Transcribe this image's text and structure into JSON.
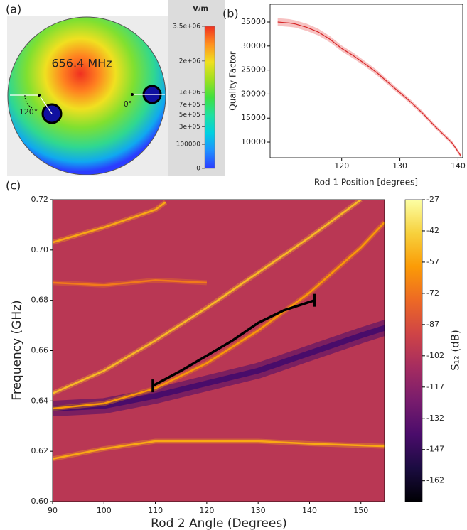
{
  "chart_data": [
    {
      "type": "field-map",
      "panel_label": "(a)",
      "annotation": "656.4 MHz",
      "angle_labels": [
        "120°",
        "0°"
      ],
      "colorbar": {
        "label": "V/m",
        "scale": "sqrt",
        "lim": [
          0,
          3500000
        ],
        "ticks": [
          {
            "value": 3500000,
            "label": "3.5e+06"
          },
          {
            "value": 2000000,
            "label": "2e+06"
          },
          {
            "value": 1000000,
            "label": "1e+06"
          },
          {
            "value": 700000,
            "label": "7e+05"
          },
          {
            "value": 500000,
            "label": "5e+05"
          },
          {
            "value": 300000,
            "label": "3e+05"
          },
          100000,
          0
        ],
        "colormap": [
          "#2b3cff",
          "#1e90ff",
          "#00d0e0",
          "#20e0a0",
          "#40e040",
          "#a0e020",
          "#f0e020",
          "#ff9020",
          "#f03020"
        ]
      }
    },
    {
      "type": "line",
      "panel_label": "(b)",
      "xlabel": "Rod 1 Position [degrees]",
      "ylabel": "Quality Factor",
      "xlim": [
        107.7,
        140.8
      ],
      "ylim": [
        6750,
        38700
      ],
      "xticks": [
        120,
        130,
        140
      ],
      "yticks": [
        10000,
        15000,
        20000,
        25000,
        30000,
        35000
      ],
      "series": [
        {
          "color": "#d62728",
          "band_color": "#f4a8a8",
          "x": [
            109,
            110,
            111,
            112,
            114,
            116,
            118,
            120,
            122,
            124,
            126,
            128,
            130,
            132,
            134,
            136,
            138,
            139,
            140,
            140.5
          ],
          "values": [
            35000,
            34900,
            34800,
            34600,
            33900,
            32900,
            31400,
            29500,
            28000,
            26300,
            24500,
            22400,
            20300,
            18200,
            15900,
            13300,
            11000,
            9800,
            8000,
            7100
          ],
          "errors": [
            800,
            800,
            800,
            750,
            750,
            700,
            650,
            600,
            600,
            550,
            550,
            500,
            500,
            450,
            450,
            400,
            400,
            400,
            400,
            400
          ]
        }
      ]
    },
    {
      "type": "heatmap",
      "panel_label": "(c)",
      "xlabel": "Rod 2 Angle (Degrees)",
      "ylabel": "Frequency (GHz)",
      "colorbar_label": "S₁₂ (dB)",
      "xlim": [
        90,
        154.6
      ],
      "ylim": [
        0.6,
        0.72
      ],
      "xticks": [
        90,
        100,
        110,
        120,
        130,
        140,
        150
      ],
      "yticks": [
        {
          "value": 0.6,
          "label": "0.60"
        },
        {
          "value": 0.62,
          "label": "0.62"
        },
        {
          "value": 0.64,
          "label": "0.64"
        },
        {
          "value": 0.66,
          "label": "0.66"
        },
        {
          "value": 0.68,
          "label": "0.68"
        },
        {
          "value": 0.7,
          "label": "0.70"
        },
        {
          "value": 0.72,
          "label": "0.72"
        }
      ],
      "clim": [
        -172,
        -27
      ],
      "cticks": [
        -27,
        -42,
        -57,
        -72,
        -87,
        -102,
        -117,
        -132,
        -147,
        -162
      ],
      "colormap": [
        "#000004",
        "#1b0c41",
        "#4a0c6b",
        "#781c6d",
        "#a52c60",
        "#cf4446",
        "#ed6925",
        "#fb9b06",
        "#f7d13d",
        "#fcffa4"
      ],
      "background": -100,
      "series": [
        {
          "kind": "trough",
          "level": -140,
          "x": [
            90,
            100,
            110,
            120,
            130,
            140,
            150,
            154.6
          ],
          "values": [
            0.637,
            0.638,
            0.642,
            0.647,
            0.652,
            0.659,
            0.666,
            0.669
          ]
        },
        {
          "kind": "mode",
          "level": -55,
          "x": [
            90,
            100,
            110,
            112
          ],
          "values": [
            0.703,
            0.709,
            0.716,
            0.719
          ]
        },
        {
          "kind": "mode",
          "level": -50,
          "x": [
            90,
            100,
            110,
            120,
            130,
            140,
            150
          ],
          "values": [
            0.643,
            0.652,
            0.664,
            0.677,
            0.691,
            0.705,
            0.72
          ]
        },
        {
          "kind": "mode",
          "level": -60,
          "x": [
            90,
            100,
            110,
            120,
            130,
            140,
            150,
            154.6
          ],
          "values": [
            0.637,
            0.639,
            0.645,
            0.655,
            0.668,
            0.683,
            0.701,
            0.711
          ]
        },
        {
          "kind": "mode",
          "level": -70,
          "x": [
            90,
            100,
            110,
            120
          ],
          "values": [
            0.687,
            0.686,
            0.688,
            0.687
          ]
        },
        {
          "kind": "mode",
          "level": -55,
          "x": [
            90,
            100,
            110,
            120,
            130,
            140,
            154.6
          ],
          "values": [
            0.617,
            0.621,
            0.624,
            0.624,
            0.624,
            0.623,
            0.622
          ]
        },
        {
          "kind": "trace",
          "color": "#000000",
          "end_caps": true,
          "x": [
            109.5,
            115,
            120,
            125,
            130,
            135,
            141
          ],
          "values": [
            0.646,
            0.652,
            0.658,
            0.664,
            0.671,
            0.676,
            0.68
          ]
        }
      ]
    }
  ]
}
